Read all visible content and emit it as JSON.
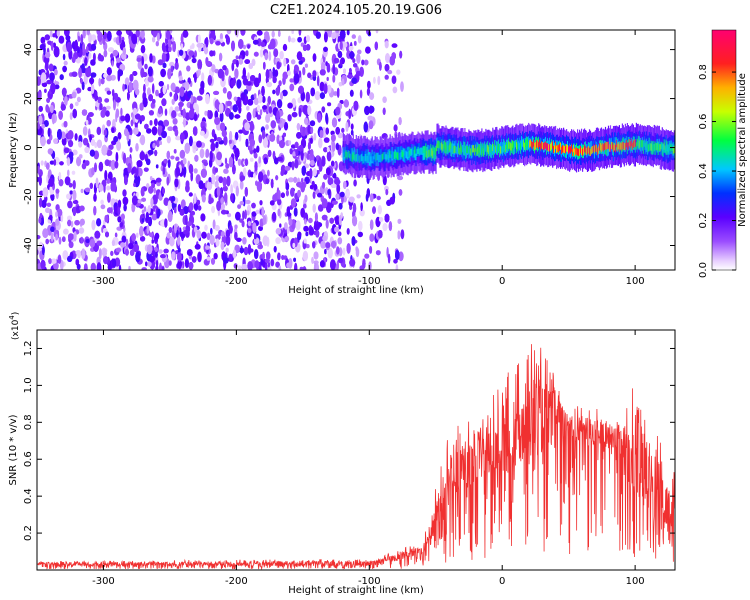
{
  "figure": {
    "title": "C2E1.2024.105.20.19.G06"
  },
  "chart_data": [
    {
      "type": "heatmap",
      "xlabel": "Height of straight line (km)",
      "ylabel": "Frequency (Hz)",
      "xlim": [
        -350,
        130
      ],
      "ylim": [
        -50,
        48
      ],
      "xticks": [
        -300,
        -200,
        -100,
        0,
        100
      ],
      "yticks": [
        -40,
        -20,
        0,
        20,
        40
      ],
      "colorbar": {
        "label": "Normalized spectral amplitude",
        "range": [
          0,
          0.97
        ],
        "ticks": [
          0.0,
          0.2,
          0.4,
          0.6,
          0.8
        ],
        "tick_labels": [
          "0.0",
          "0.2",
          "0.4",
          "0.6",
          "0.8"
        ],
        "colormap": "rainbow (white-purple-blue-cyan-green-yellow-orange-red-magenta)"
      },
      "features": {
        "noise_region_x": [
          -350,
          -75
        ],
        "noise_amplitude": 0.25,
        "signal_band_x": [
          -120,
          130
        ],
        "signal_band_center_hz": 0,
        "signal_band_halfwidth_hz": 5,
        "peak_amplitude_x": [
          20,
          100
        ],
        "peak_amplitude": 0.9
      }
    },
    {
      "type": "line",
      "xlabel": "Height of straight line (km)",
      "ylabel": "SNR (10 * v/v)",
      "y_multiplier_label": "(x10",
      "y_multiplier_exp": "4",
      "y_multiplier_close": ")",
      "xlim": [
        -350,
        130
      ],
      "ylim": [
        0,
        1.3
      ],
      "xticks": [
        -300,
        -200,
        -100,
        0,
        100
      ],
      "yticks": [
        0.2,
        0.4,
        0.6,
        0.8,
        1.0,
        1.2
      ],
      "ytick_labels": [
        "0.2",
        "0.4",
        "0.6",
        "0.8",
        "1.0",
        "1.2"
      ],
      "series": [
        {
          "color": "#f03030",
          "envelope": {
            "x": [
              -350,
              -100,
              -80,
              -60,
              -45,
              -40,
              -30,
              -20,
              -10,
              0,
              10,
              20,
              30,
              40,
              50,
              60,
              70,
              80,
              90,
              100,
              110,
              120,
              130
            ],
            "y_mean": [
              0.03,
              0.03,
              0.06,
              0.1,
              0.3,
              0.45,
              0.5,
              0.55,
              0.6,
              0.62,
              0.66,
              0.72,
              0.76,
              0.78,
              0.76,
              0.72,
              0.71,
              0.7,
              0.66,
              0.55,
              0.42,
              0.35,
              0.3
            ],
            "y_max": [
              0.05,
              0.06,
              0.1,
              0.16,
              0.6,
              0.8,
              0.8,
              0.85,
              0.95,
              1.05,
              1.1,
              1.27,
              1.2,
              1.05,
              0.9,
              0.9,
              0.88,
              0.85,
              0.8,
              1.15,
              1.0,
              0.75,
              0.6
            ]
          }
        }
      ]
    }
  ]
}
